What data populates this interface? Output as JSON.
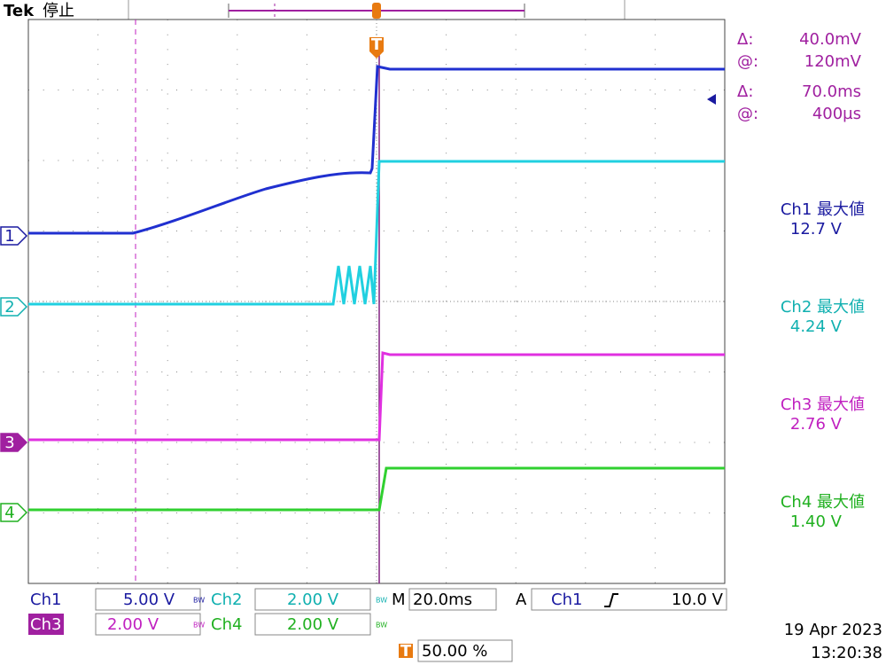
{
  "header": {
    "brand": "Tek",
    "status": "停止"
  },
  "cursors": [
    {
      "label": "Δ:",
      "value": "40.0mV"
    },
    {
      "label": "@:",
      "value": "120mV"
    },
    {
      "label": "Δ:",
      "value": "70.0ms"
    },
    {
      "label": "@:",
      "value": "400µs"
    }
  ],
  "trigger_marker": "T",
  "channel_markers": [
    "1",
    "2",
    "3",
    "4"
  ],
  "measurements": [
    {
      "label": "Ch1 最大値",
      "value": "12.7 V"
    },
    {
      "label": "Ch2 最大値",
      "value": "4.24 V"
    },
    {
      "label": "Ch3 最大値",
      "value": "2.76 V"
    },
    {
      "label": "Ch4 最大値",
      "value": "1.40 V"
    }
  ],
  "channels": [
    {
      "name": "Ch1",
      "scale": "5.00 V"
    },
    {
      "name": "Ch2",
      "scale": "2.00 V"
    },
    {
      "name": "Ch3",
      "scale": "2.00 V"
    },
    {
      "name": "Ch4",
      "scale": "2.00 V"
    }
  ],
  "bandwidth_symbol": "BW",
  "timebase": {
    "label": "M",
    "value": "20.0ms"
  },
  "trigger": {
    "mode": "A",
    "source": "Ch1",
    "level": "10.0 V",
    "position": "50.00 %"
  },
  "date": "19 Apr 2023",
  "time": "13:20:38"
}
